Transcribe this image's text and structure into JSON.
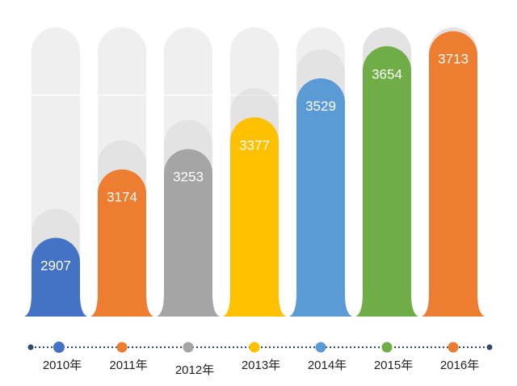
{
  "chart_data": {
    "type": "bar",
    "title": "",
    "xlabel": "",
    "ylabel": "",
    "categories": [
      "2010年",
      "2011年",
      "2012年",
      "2013年",
      "2014年",
      "2015年",
      "2016年"
    ],
    "values": [
      2907,
      3174,
      3253,
      3377,
      3529,
      3654,
      3713
    ],
    "ylim": [
      2600,
      3740
    ],
    "colors": [
      "#4472C4",
      "#ED7D31",
      "#A5A5A5",
      "#FFC000",
      "#5B9BD5",
      "#70AD47",
      "#ED7D31"
    ],
    "track_color": "#EFEFEF",
    "track_highlight_color": "#D9D9D9",
    "timeline_color": "#2F4A6B",
    "grid": false,
    "legend": false,
    "show_data_labels": true
  }
}
